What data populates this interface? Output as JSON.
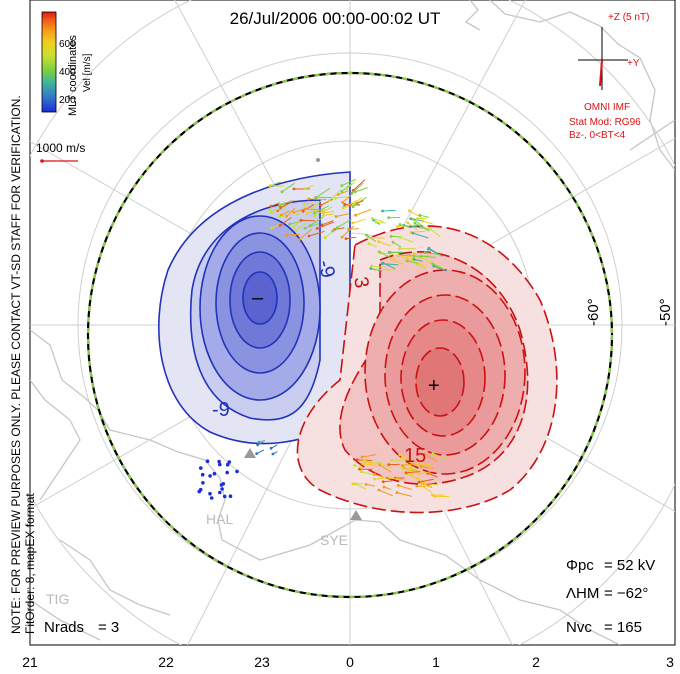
{
  "title": "26/Jul/2006 00:00-00:02 UT",
  "coordinates_label": "MLT coordinates",
  "vertical_note": "NOTE: FOR PREVIEW PURPOSES ONLY. PLEASE CONTACT VT-SD STAFF FOR VERIFICATION.",
  "fit_order_note": "FitOrder: 8, mapEX format",
  "colorbar": {
    "label": "Vel [m/s]",
    "ticks": [
      "600",
      "400",
      "200"
    ],
    "colors": [
      "#e01818",
      "#f05a18",
      "#f59a18",
      "#f2cc20",
      "#c8e030",
      "#7ed040",
      "#3cb0a0",
      "#2f74c8",
      "#1c2ed8"
    ]
  },
  "scale_vector_label": "1000 m/s",
  "imf": {
    "z_label": "+Z (5 nT)",
    "y_label": "+Y",
    "source": "OMNI IMF",
    "model": "Stat Mod: RG96",
    "condition": "Bz-, 0<BT<4",
    "color": "#dd1111"
  },
  "contour_labels": {
    "neg_a": "-9",
    "neg_b": "-9",
    "pos_a": "3",
    "pos_b": "15",
    "min_marker": "–",
    "max_marker": "+"
  },
  "latitude_labels": [
    "-60°",
    "-50°"
  ],
  "stations": [
    "HAL",
    "SYE",
    "TIG"
  ],
  "stats": {
    "phi_label": "Φpc",
    "phi_value": "= 52 kV",
    "lambda_label": "ΛHM",
    "lambda_value": "= −62°",
    "nvc_label": "Nvc",
    "nvc_value": "= 165",
    "nrads_label": "Nrads",
    "nrads_value": "= 3"
  },
  "mlt_axis": [
    "21",
    "22",
    "23",
    "0",
    "1",
    "2",
    "3"
  ],
  "colors": {
    "negative_cell": "#2233bb",
    "positive_cell": "#cc1111",
    "hm_boundary_dash": "#88cc44",
    "coastline": "#c8c8c8",
    "grid": "#d2d2d2"
  }
}
